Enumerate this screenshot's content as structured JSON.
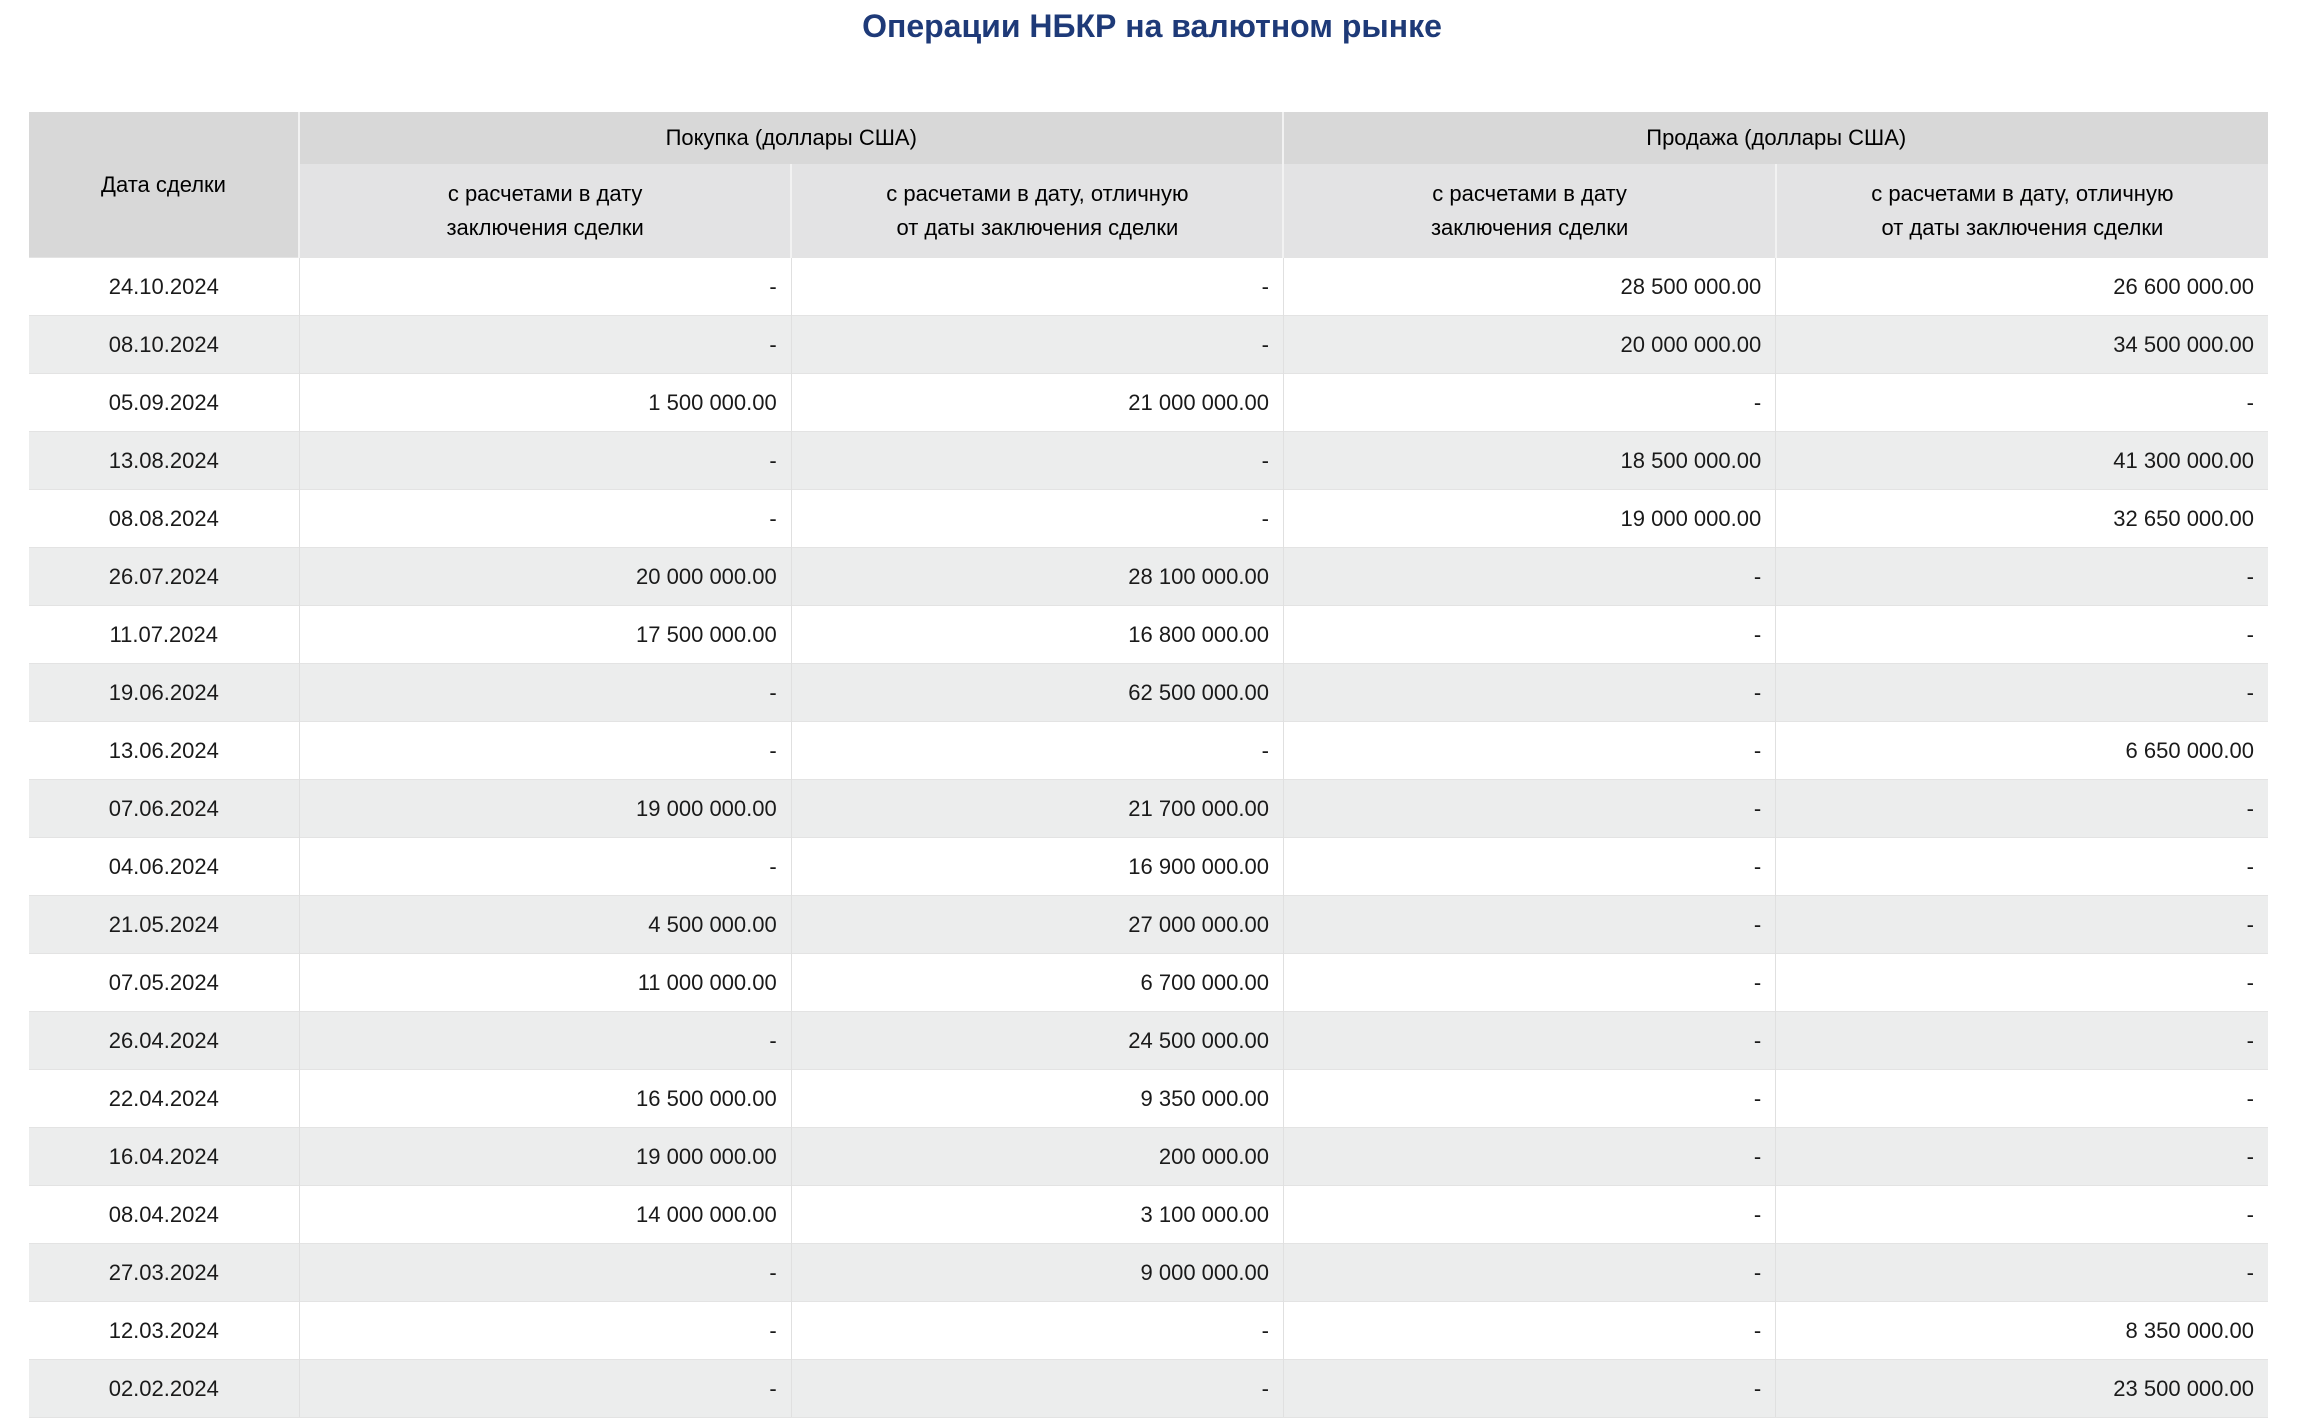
{
  "page": {
    "title": "Операции НБКР на валютном рынке"
  },
  "colors": {
    "title_text": "#1e3a78",
    "header_group_bg": "#d8d8d8",
    "header_sub_bg": "#e3e3e4",
    "row_stripe_bg": "#eceded",
    "grid_line": "#e0e0e0"
  },
  "table": {
    "date_column_header": "Дата сделки",
    "purchase_group_header": "Покупка (доллары США)",
    "sale_group_header": "Продажа (доллары США)",
    "sub_headers": [
      {
        "line1": "с расчетами в дату",
        "line2": "заключения сделки"
      },
      {
        "line1": "с расчетами в дату, отличную",
        "line2": "от даты заключения сделки"
      },
      {
        "line1": "с расчетами в дату",
        "line2": "заключения сделки"
      },
      {
        "line1": "с расчетами в дату, отличную",
        "line2": "от даты заключения сделки"
      }
    ],
    "rows": [
      {
        "date": "24.10.2024",
        "buy_settlement_same_date": "-",
        "buy_settlement_different_date": "-",
        "sell_settlement_same_date": "28 500 000.00",
        "sell_settlement_different_date": "26 600 000.00"
      },
      {
        "date": "08.10.2024",
        "buy_settlement_same_date": "-",
        "buy_settlement_different_date": "-",
        "sell_settlement_same_date": "20 000 000.00",
        "sell_settlement_different_date": "34 500 000.00"
      },
      {
        "date": "05.09.2024",
        "buy_settlement_same_date": "1 500 000.00",
        "buy_settlement_different_date": "21 000 000.00",
        "sell_settlement_same_date": "-",
        "sell_settlement_different_date": "-"
      },
      {
        "date": "13.08.2024",
        "buy_settlement_same_date": "-",
        "buy_settlement_different_date": "-",
        "sell_settlement_same_date": "18 500 000.00",
        "sell_settlement_different_date": "41 300 000.00"
      },
      {
        "date": "08.08.2024",
        "buy_settlement_same_date": "-",
        "buy_settlement_different_date": "-",
        "sell_settlement_same_date": "19 000 000.00",
        "sell_settlement_different_date": "32 650 000.00"
      },
      {
        "date": "26.07.2024",
        "buy_settlement_same_date": "20 000 000.00",
        "buy_settlement_different_date": "28 100 000.00",
        "sell_settlement_same_date": "-",
        "sell_settlement_different_date": "-"
      },
      {
        "date": "11.07.2024",
        "buy_settlement_same_date": "17 500 000.00",
        "buy_settlement_different_date": "16 800 000.00",
        "sell_settlement_same_date": "-",
        "sell_settlement_different_date": "-"
      },
      {
        "date": "19.06.2024",
        "buy_settlement_same_date": "-",
        "buy_settlement_different_date": "62 500 000.00",
        "sell_settlement_same_date": "-",
        "sell_settlement_different_date": "-"
      },
      {
        "date": "13.06.2024",
        "buy_settlement_same_date": "-",
        "buy_settlement_different_date": "-",
        "sell_settlement_same_date": "-",
        "sell_settlement_different_date": "6 650 000.00"
      },
      {
        "date": "07.06.2024",
        "buy_settlement_same_date": "19 000 000.00",
        "buy_settlement_different_date": "21 700 000.00",
        "sell_settlement_same_date": "-",
        "sell_settlement_different_date": "-"
      },
      {
        "date": "04.06.2024",
        "buy_settlement_same_date": "-",
        "buy_settlement_different_date": "16 900 000.00",
        "sell_settlement_same_date": "-",
        "sell_settlement_different_date": "-"
      },
      {
        "date": "21.05.2024",
        "buy_settlement_same_date": "4 500 000.00",
        "buy_settlement_different_date": "27 000 000.00",
        "sell_settlement_same_date": "-",
        "sell_settlement_different_date": "-"
      },
      {
        "date": "07.05.2024",
        "buy_settlement_same_date": "11 000 000.00",
        "buy_settlement_different_date": "6 700 000.00",
        "sell_settlement_same_date": "-",
        "sell_settlement_different_date": "-"
      },
      {
        "date": "26.04.2024",
        "buy_settlement_same_date": "-",
        "buy_settlement_different_date": "24 500 000.00",
        "sell_settlement_same_date": "-",
        "sell_settlement_different_date": "-"
      },
      {
        "date": "22.04.2024",
        "buy_settlement_same_date": "16 500 000.00",
        "buy_settlement_different_date": "9 350 000.00",
        "sell_settlement_same_date": "-",
        "sell_settlement_different_date": "-"
      },
      {
        "date": "16.04.2024",
        "buy_settlement_same_date": "19 000 000.00",
        "buy_settlement_different_date": "200 000.00",
        "sell_settlement_same_date": "-",
        "sell_settlement_different_date": "-"
      },
      {
        "date": "08.04.2024",
        "buy_settlement_same_date": "14 000 000.00",
        "buy_settlement_different_date": "3 100 000.00",
        "sell_settlement_same_date": "-",
        "sell_settlement_different_date": "-"
      },
      {
        "date": "27.03.2024",
        "buy_settlement_same_date": "-",
        "buy_settlement_different_date": "9 000 000.00",
        "sell_settlement_same_date": "-",
        "sell_settlement_different_date": "-"
      },
      {
        "date": "12.03.2024",
        "buy_settlement_same_date": "-",
        "buy_settlement_different_date": "-",
        "sell_settlement_same_date": "-",
        "sell_settlement_different_date": "8 350 000.00"
      },
      {
        "date": "02.02.2024",
        "buy_settlement_same_date": "-",
        "buy_settlement_different_date": "-",
        "sell_settlement_same_date": "-",
        "sell_settlement_different_date": "23 500 000.00"
      }
    ]
  }
}
